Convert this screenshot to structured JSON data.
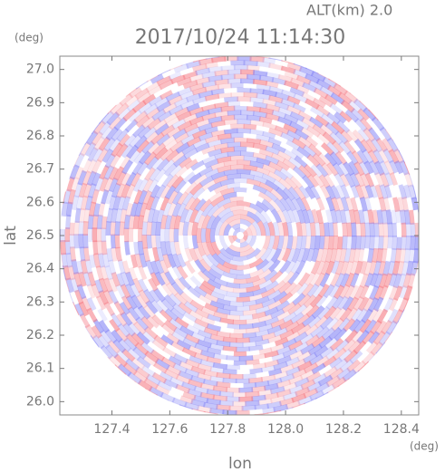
{
  "chart_data": {
    "type": "radar-image",
    "title": "2017/10/24 11:14:30",
    "subtitle": "ALT(km) 2.0",
    "x_label": "lon",
    "y_label": "lat",
    "x_unit": "(deg)",
    "y_unit": "(deg)",
    "xlim": [
      127.22,
      128.46
    ],
    "xticks": [
      127.4,
      127.6,
      127.8,
      {
        "value": 128.0,
        "label": "128.0"
      },
      128.2,
      128.4
    ],
    "ylim": [
      25.96,
      27.04
    ],
    "yticks": [
      {
        "value": 26.0,
        "label": "26.0"
      },
      26.1,
      26.2,
      26.3,
      26.4,
      26.5,
      26.6,
      26.7,
      26.8,
      26.9,
      {
        "value": 27.0,
        "label": "27.0"
      }
    ]
  }
}
